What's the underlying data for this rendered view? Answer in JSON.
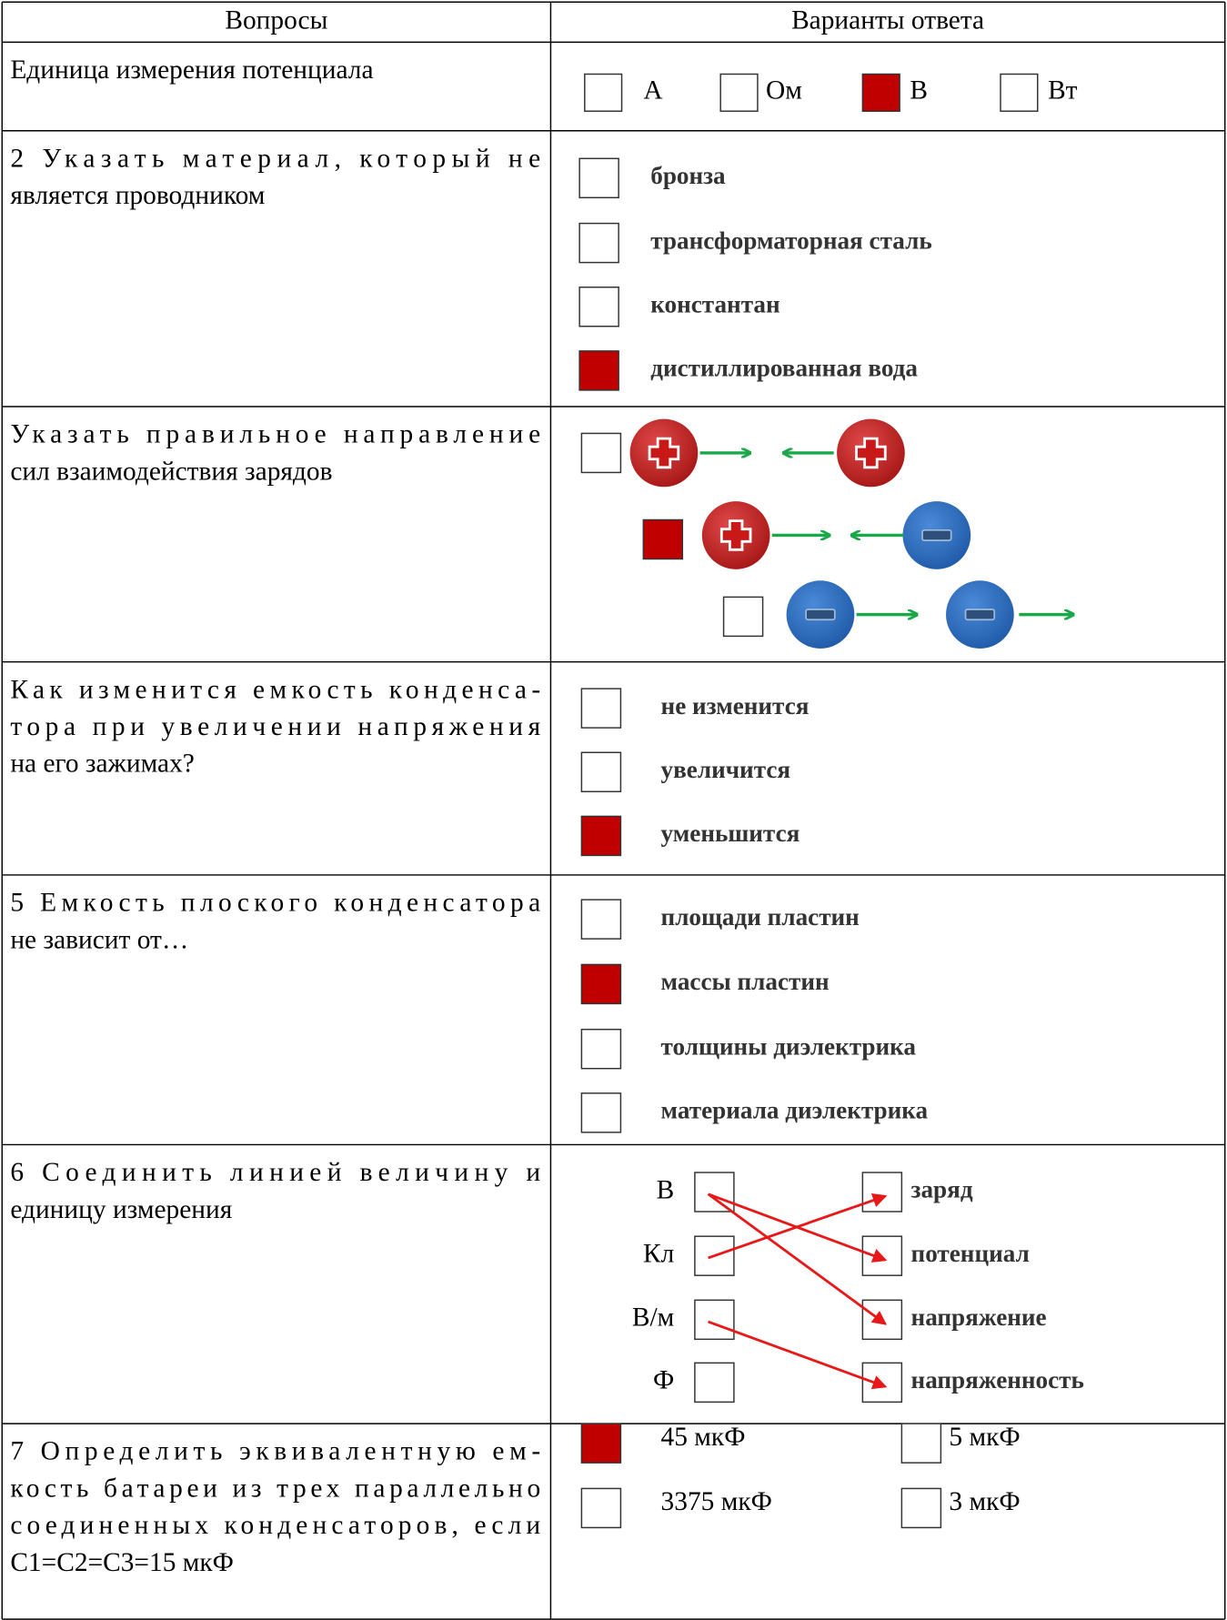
{
  "header": {
    "questions": "Вопросы",
    "answers": "Варианты ответа"
  },
  "rows": [
    {
      "question": [
        "Единица измерения потенциала"
      ],
      "options": [
        {
          "label": "А",
          "checked": false
        },
        {
          "label": "Ом",
          "checked": false
        },
        {
          "label": "В",
          "checked": true
        },
        {
          "label": "Вт",
          "checked": false
        }
      ]
    },
    {
      "question": [
        "2 Указать материал, который не",
        "является проводником"
      ],
      "options": [
        {
          "label": "бронза",
          "checked": false
        },
        {
          "label": "трансформаторная сталь",
          "checked": false
        },
        {
          "label": "константан",
          "checked": false
        },
        {
          "label": "дистиллированная вода",
          "checked": true
        }
      ]
    },
    {
      "question": [
        "Указать правильное направление",
        "сил взаимодействия зарядов"
      ],
      "options": [
        {
          "checked": false
        },
        {
          "checked": true
        },
        {
          "checked": false
        }
      ]
    },
    {
      "question": [
        "Как изменится емкость конденса-",
        "тора при увеличении напряжения",
        "на его зажимах?"
      ],
      "options": [
        {
          "label": "не изменится",
          "checked": false
        },
        {
          "label": "увеличится",
          "checked": false
        },
        {
          "label": "уменьшится",
          "checked": true
        }
      ]
    },
    {
      "question": [
        "5 Емкость плоского конденсатора",
        "не зависит от…"
      ],
      "options": [
        {
          "label": "площади пластин",
          "checked": false
        },
        {
          "label": "массы пластин",
          "checked": true
        },
        {
          "label": "толщины диэлектрика",
          "checked": false
        },
        {
          "label": "материала диэлектрика",
          "checked": false
        }
      ]
    },
    {
      "question": [
        "6 Соединить линией величину и",
        "единицу измерения"
      ],
      "units": [
        "В",
        "Кл",
        "В/м",
        "Ф"
      ],
      "quantities": [
        "заряд",
        "потенциал",
        "напряжение",
        "напряженность"
      ]
    },
    {
      "question": [
        "7 Определить эквивалентную ем-",
        "кость батареи из трех параллельно",
        "соединенных конденсаторов, если",
        "С1=С2=С3=15 мкФ"
      ],
      "options": [
        {
          "label": "45 мкФ",
          "checked": true
        },
        {
          "label": "5 мкФ",
          "checked": false
        },
        {
          "label": "3375 мкФ",
          "checked": false
        },
        {
          "label": "3 мкФ",
          "checked": false
        }
      ]
    }
  ]
}
